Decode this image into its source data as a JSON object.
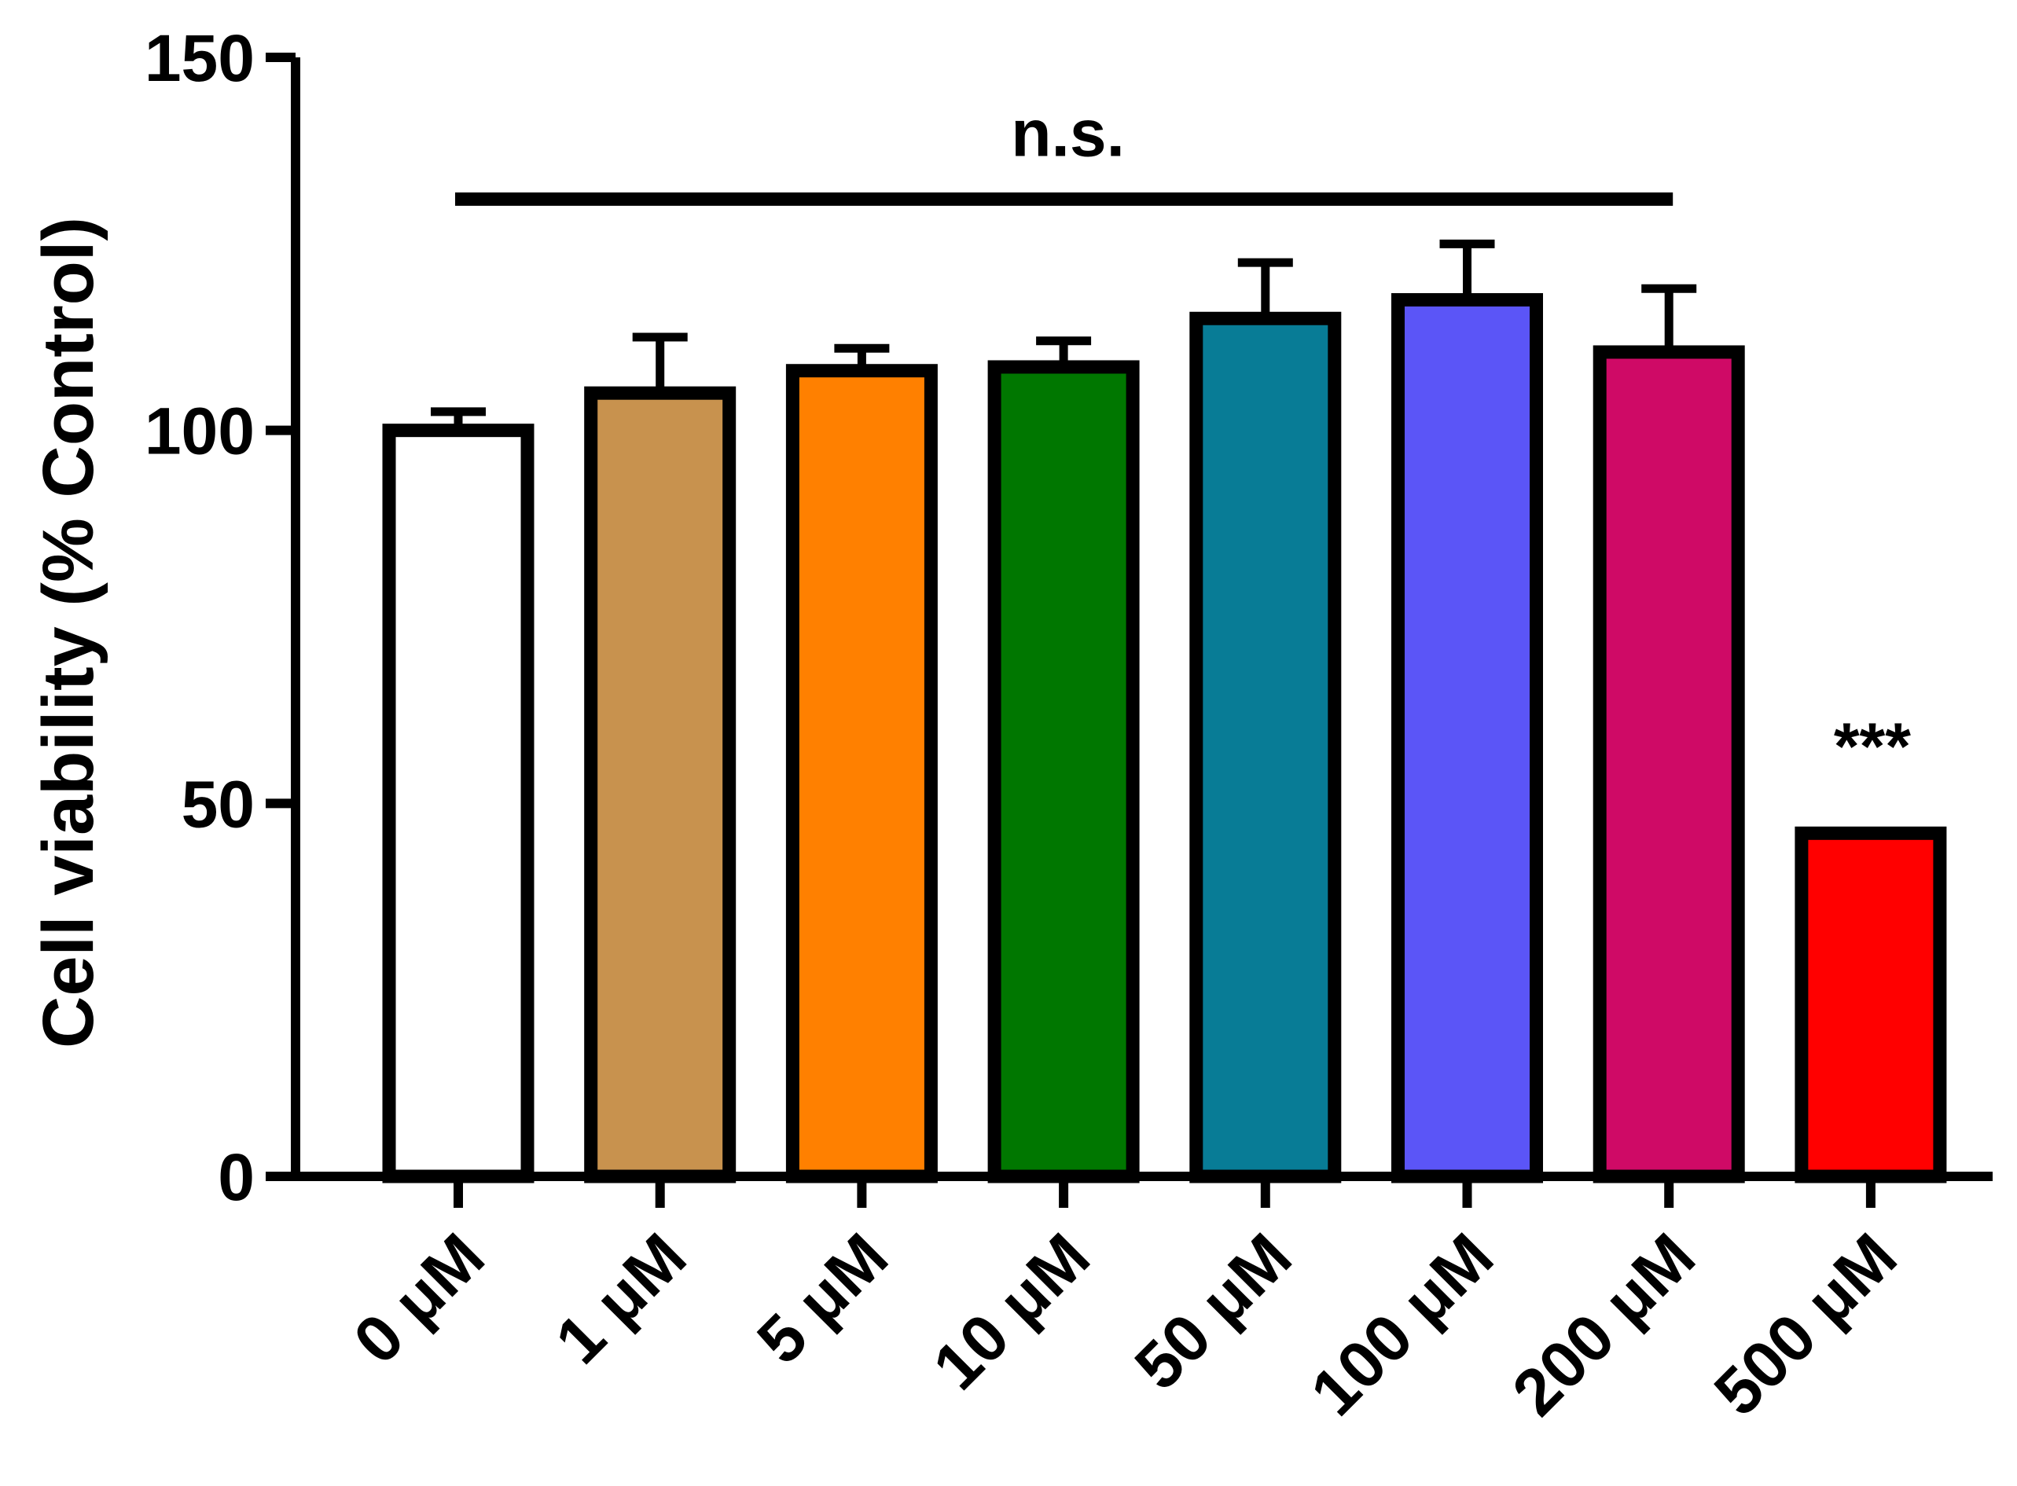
{
  "chart_data": {
    "type": "bar",
    "title": "",
    "xlabel": "",
    "ylabel": "Cell viability (% Control)",
    "ylim": [
      0,
      150
    ],
    "yticks": [
      0,
      50,
      100,
      150
    ],
    "ytick_labels": [
      "0",
      "50",
      "100",
      "150"
    ],
    "grid": false,
    "categories": [
      "0 μM",
      "1 μM",
      "5 μM",
      "10 μM",
      "50 μM",
      "100 μM",
      "200 μM",
      "500 μM"
    ],
    "values": [
      100,
      105,
      108,
      108.5,
      115,
      117.5,
      110.5,
      46
    ],
    "errors": [
      2.5,
      7.5,
      3,
      3.5,
      7.5,
      7.5,
      8.5,
      0
    ],
    "colors": [
      "#ffffff",
      "#c8924e",
      "#ff8000",
      "#007700",
      "#087c96",
      "#5b55f7",
      "#cf0a66",
      "#ff0000"
    ],
    "annotations": {
      "ns_label": "n.s.",
      "ns_from": 0,
      "ns_to": 6,
      "ns_y": 131,
      "significance_label": "***",
      "significance_index": 7
    }
  }
}
